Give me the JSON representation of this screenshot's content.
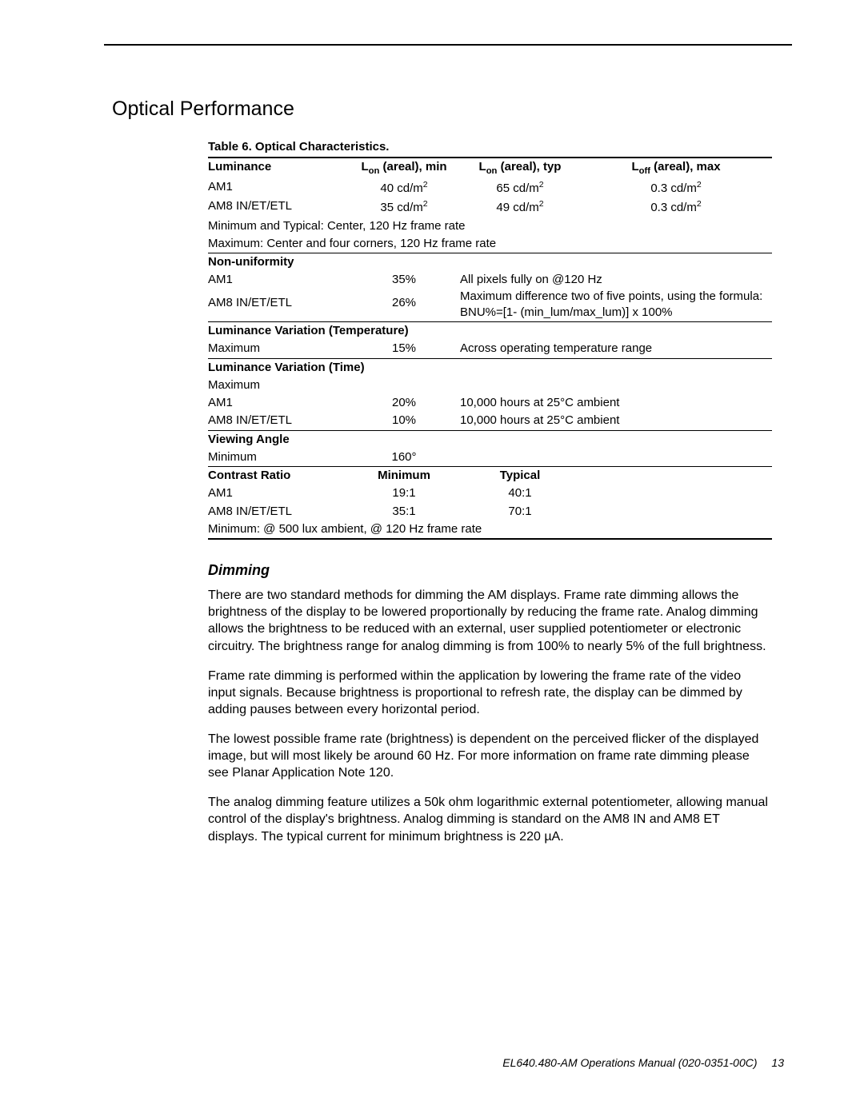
{
  "section_title": "Optical Performance",
  "table_caption": "Table 6. Optical Characteristics.",
  "luminance": {
    "header": {
      "label": "Luminance",
      "min": "L<sub>on</sub> (areal), min",
      "typ": "L<sub>on</sub> (areal), typ",
      "max": "L<sub>off</sub> (areal), max"
    },
    "rows": [
      {
        "label": "AM1",
        "min": "40 cd/m<sup>2</sup>",
        "typ": "65 cd/m<sup>2</sup>",
        "max": "0.3 cd/m<sup>2</sup>"
      },
      {
        "label": "AM8 IN/ET/ETL",
        "min": "35 cd/m<sup>2</sup>",
        "typ": "49 cd/m<sup>2</sup>",
        "max": "0.3 cd/m<sup>2</sup>"
      }
    ],
    "note1": "Minimum and Typical: Center, 120 Hz frame rate",
    "note2": "Maximum: Center and four corners, 120 Hz frame rate"
  },
  "nonuniformity": {
    "header": "Non-uniformity",
    "rows": [
      {
        "label": "AM1",
        "val": "35%"
      },
      {
        "label": "AM8 IN/ET/ETL",
        "val": "26%"
      }
    ],
    "note_lines": [
      "All pixels fully on @120 Hz",
      "Maximum difference two of five points, using the formula:",
      "BNU%=[1- (min_lum/max_lum)] x 100%"
    ]
  },
  "lum_var_temp": {
    "header": "Luminance Variation (Temperature)",
    "row": {
      "label": "Maximum",
      "val": "15%",
      "note": "Across operating temperature range"
    }
  },
  "lum_var_time": {
    "header": "Luminance Variation (Time)",
    "sub": "Maximum",
    "rows": [
      {
        "label": "AM1",
        "val": "20%",
        "note": "10,000 hours at 25°C ambient"
      },
      {
        "label": "AM8 IN/ET/ETL",
        "val": "10%",
        "note": "10,000 hours at 25°C ambient"
      }
    ]
  },
  "viewing_angle": {
    "header": "Viewing Angle",
    "row": {
      "label": "Minimum",
      "val": "160°"
    }
  },
  "contrast": {
    "header": {
      "label": "Contrast Ratio",
      "min": "Minimum",
      "typ": "Typical"
    },
    "rows": [
      {
        "label": "AM1",
        "min": "19:1",
        "typ": "40:1"
      },
      {
        "label": "AM8 IN/ET/ETL",
        "min": "35:1",
        "typ": "70:1"
      }
    ],
    "note": "Minimum: @ 500 lux ambient, @ 120 Hz frame rate"
  },
  "dimming": {
    "heading": "Dimming",
    "p1": "There are two standard methods for dimming the AM displays. Frame rate dimming allows the brightness of the display to be lowered proportionally by reducing the frame rate. Analog dimming allows the brightness to be reduced with an external, user supplied potentiometer or electronic circuitry. The brightness range for analog dimming is from 100% to nearly 5% of the full brightness.",
    "p2": "Frame rate dimming is performed within the application by lowering the frame rate of the video input signals. Because brightness is proportional to refresh rate, the display can be dimmed by adding pauses between every horizontal period.",
    "p3": "The lowest possible frame rate (brightness) is dependent on the perceived flicker of the displayed image, but will most likely be around 60 Hz. For more information on frame rate dimming please see Planar Application Note 120.",
    "p4": "The analog dimming feature utilizes a 50k ohm logarithmic external potentiometer, allowing manual control of the display's brightness. Analog dimming is standard on the AM8 IN and AM8 ET displays. The typical current for minimum brightness is 220 µA."
  },
  "footer": {
    "doc": "EL640.480-AM Operations Manual (020-0351-00C)",
    "page": "13"
  }
}
